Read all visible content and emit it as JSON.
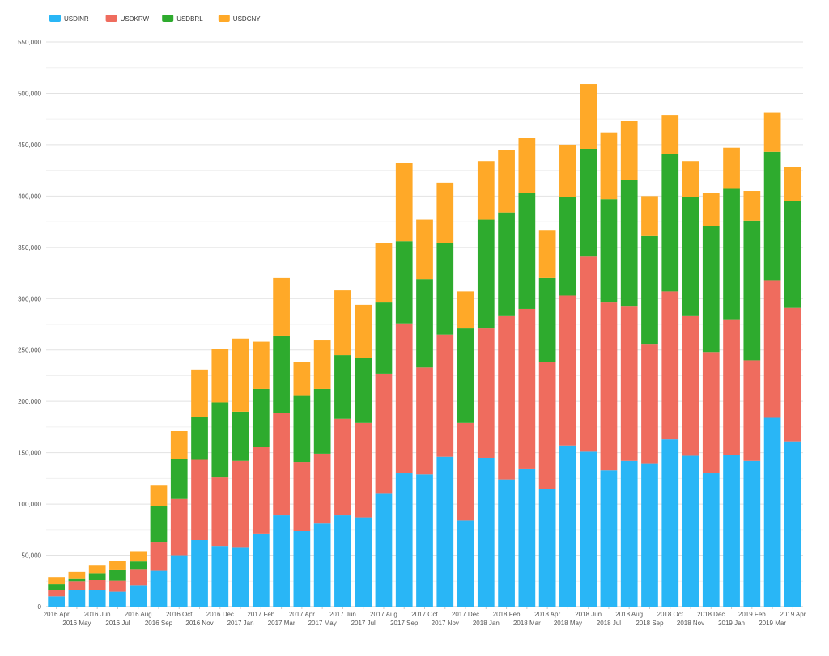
{
  "chart_data": {
    "type": "bar",
    "stacked": true,
    "title": "",
    "xlabel": "",
    "ylabel": "",
    "ylim": [
      0,
      550000
    ],
    "yticks": [
      0,
      50000,
      100000,
      150000,
      200000,
      250000,
      300000,
      350000,
      400000,
      450000,
      500000,
      550000
    ],
    "ytick_labels": [
      "0",
      "50,000",
      "100,000",
      "150,000",
      "200,000",
      "250,000",
      "300,000",
      "350,000",
      "400,000",
      "450,000",
      "500,000",
      "550,000"
    ],
    "grid": true,
    "legend_position": "top-left",
    "categories": [
      "2016 Apr",
      "2016 May",
      "2016 Jun",
      "2016 Jul",
      "2016 Aug",
      "2016 Sep",
      "2016 Oct",
      "2016 Nov",
      "2016 Dec",
      "2017 Jan",
      "2017 Feb",
      "2017 Mar",
      "2017 Apr",
      "2017 May",
      "2017 Jun",
      "2017 Jul",
      "2017 Aug",
      "2017 Sep",
      "2017 Oct",
      "2017 Nov",
      "2017 Dec",
      "2018 Jan",
      "2018 Feb",
      "2018 Mar",
      "2018 Apr",
      "2018 May",
      "2018 Jun",
      "2018 Jul",
      "2018 Aug",
      "2018 Sep",
      "2018 Oct",
      "2018 Nov",
      "2018 Dec",
      "2019 Jan",
      "2019 Feb",
      "2019 Mar",
      "2019 Apr"
    ],
    "series": [
      {
        "name": "USDINR",
        "color": "#29b6f6",
        "values": [
          10000,
          16000,
          16000,
          14500,
          21000,
          35000,
          50000,
          65000,
          59000,
          58000,
          71000,
          89000,
          74000,
          81000,
          89000,
          87000,
          110000,
          130000,
          129000,
          146000,
          84000,
          145000,
          124000,
          134000,
          115000,
          157000,
          151000,
          133000,
          142000,
          139000,
          163000,
          147000,
          130000,
          148000,
          142000,
          184000,
          161000
        ]
      },
      {
        "name": "USDKRW",
        "color": "#ef6c5e",
        "values": [
          6000,
          9000,
          10000,
          11000,
          15000,
          28000,
          55000,
          78000,
          67000,
          84000,
          85000,
          100000,
          67000,
          68000,
          94000,
          92000,
          117000,
          146000,
          104000,
          119000,
          95000,
          126000,
          159000,
          156000,
          123000,
          146000,
          190000,
          164000,
          151000,
          117000,
          144000,
          136000,
          118000,
          132000,
          98000,
          134000,
          130000
        ]
      },
      {
        "name": "USDBRL",
        "color": "#2eab2e",
        "values": [
          6000,
          2000,
          6000,
          10000,
          8000,
          35000,
          39000,
          42000,
          73000,
          48000,
          56000,
          75000,
          65000,
          63000,
          62000,
          63000,
          70000,
          80000,
          86000,
          89000,
          92000,
          106000,
          101000,
          113000,
          82000,
          96000,
          105000,
          100000,
          123000,
          105000,
          134000,
          116000,
          123000,
          127000,
          136000,
          125000,
          104000
        ]
      },
      {
        "name": "USDCNY",
        "color": "#ffa928",
        "values": [
          7000,
          7000,
          8000,
          9000,
          10000,
          20000,
          27000,
          46000,
          52000,
          71000,
          46000,
          56000,
          32000,
          48000,
          63000,
          52000,
          57000,
          76000,
          58000,
          59000,
          36000,
          57000,
          61000,
          54000,
          47000,
          51000,
          63000,
          65000,
          57000,
          39000,
          38000,
          35000,
          32000,
          40000,
          29000,
          38000,
          33000
        ]
      }
    ]
  }
}
